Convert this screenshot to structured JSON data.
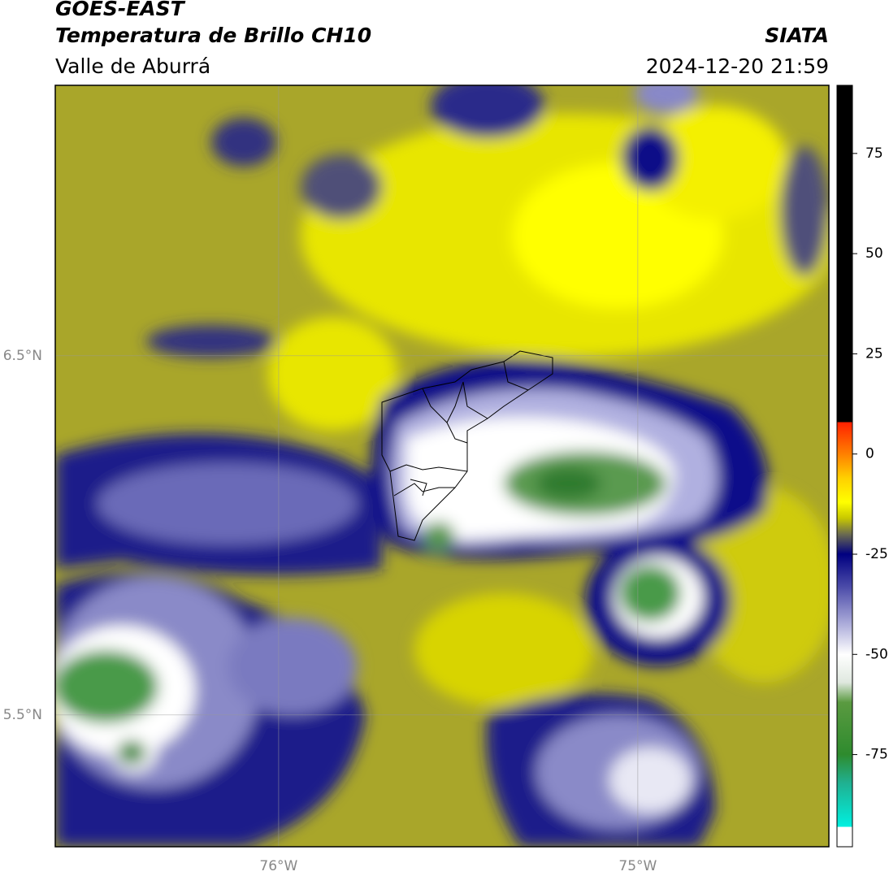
{
  "header": {
    "title": "GOES-EAST",
    "subtitle": "Temperatura de Brillo CH10",
    "region": "Valle de Aburrá",
    "agency": "SIATA",
    "datetime": "2024-12-20 21:59"
  },
  "map": {
    "xlim": [
      -76.622,
      -74.468
    ],
    "ylim": [
      5.133,
      7.253
    ],
    "xticks": [
      {
        "value": -76,
        "label": "76°W"
      },
      {
        "value": -75,
        "label": "75°W"
      }
    ],
    "yticks": [
      {
        "value": 6.5,
        "label": "6.5°N"
      },
      {
        "value": 5.5,
        "label": "5.5°N"
      }
    ],
    "grid": true
  },
  "colorbar": {
    "range": [
      -98,
      92
    ],
    "ticks": [
      75,
      50,
      25,
      0,
      -25,
      -50,
      -75
    ],
    "stops": [
      {
        "value": -98,
        "color": "#ffffff"
      },
      {
        "value": -93,
        "color": "#ffffff"
      },
      {
        "value": -93,
        "color": "#00f0e0"
      },
      {
        "value": -82,
        "color": "#20b090"
      },
      {
        "value": -75,
        "color": "#2e8b2e"
      },
      {
        "value": -62,
        "color": "#5a9a40"
      },
      {
        "value": -57,
        "color": "#dfe8df"
      },
      {
        "value": -50,
        "color": "#ffffff"
      },
      {
        "value": -42,
        "color": "#a8a8d8"
      },
      {
        "value": -33,
        "color": "#4a4aa8"
      },
      {
        "value": -25,
        "color": "#000080"
      },
      {
        "value": -20,
        "color": "#6b6b50"
      },
      {
        "value": -16,
        "color": "#c8c800"
      },
      {
        "value": -12,
        "color": "#ffff00"
      },
      {
        "value": -6,
        "color": "#ffd000"
      },
      {
        "value": 0,
        "color": "#ff8000"
      },
      {
        "value": 8,
        "color": "#ff2000"
      },
      {
        "value": 8,
        "color": "#000000"
      },
      {
        "value": 92,
        "color": "#000000"
      }
    ]
  }
}
